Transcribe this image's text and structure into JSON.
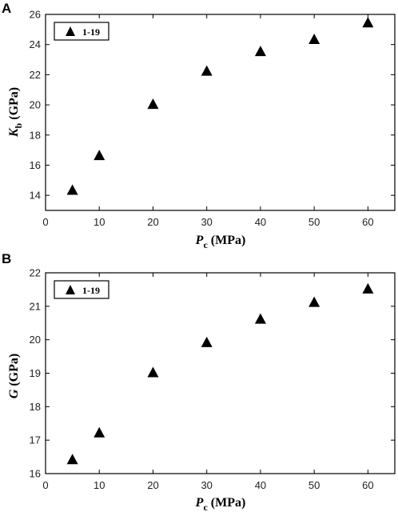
{
  "chart_data": [
    {
      "type": "scatter",
      "panel_label": "A",
      "ylabel": {
        "symbol": "K",
        "subscript": "b",
        "unit": "(GPa)"
      },
      "xlabel": {
        "symbol": "P",
        "subscript": "c",
        "unit": "(MPa)"
      },
      "xlim": [
        0,
        65
      ],
      "ylim": [
        13,
        26
      ],
      "xticks": [
        0,
        10,
        20,
        30,
        40,
        50,
        60
      ],
      "yticks": [
        14,
        16,
        18,
        20,
        22,
        24,
        26
      ],
      "legend_position": "top-left",
      "series": [
        {
          "name": "1-19",
          "marker": "triangle",
          "color": "#000000",
          "x": [
            5,
            10,
            20,
            30,
            40,
            50,
            60
          ],
          "y": [
            14.3,
            16.6,
            20.0,
            22.2,
            23.5,
            24.3,
            25.4
          ]
        }
      ]
    },
    {
      "type": "scatter",
      "panel_label": "B",
      "ylabel": {
        "symbol": "G",
        "subscript": "",
        "unit": "(GPa)"
      },
      "xlabel": {
        "symbol": "P",
        "subscript": "c",
        "unit": "(MPa)"
      },
      "xlim": [
        0,
        65
      ],
      "ylim": [
        16,
        22
      ],
      "xticks": [
        0,
        10,
        20,
        30,
        40,
        50,
        60
      ],
      "yticks": [
        16,
        17,
        18,
        19,
        20,
        21,
        22
      ],
      "legend_position": "top-left",
      "series": [
        {
          "name": "1-19",
          "marker": "triangle",
          "color": "#000000",
          "x": [
            5,
            10,
            20,
            30,
            40,
            50,
            60
          ],
          "y": [
            16.4,
            17.2,
            19.0,
            19.9,
            20.6,
            21.1,
            21.5
          ]
        }
      ]
    }
  ]
}
